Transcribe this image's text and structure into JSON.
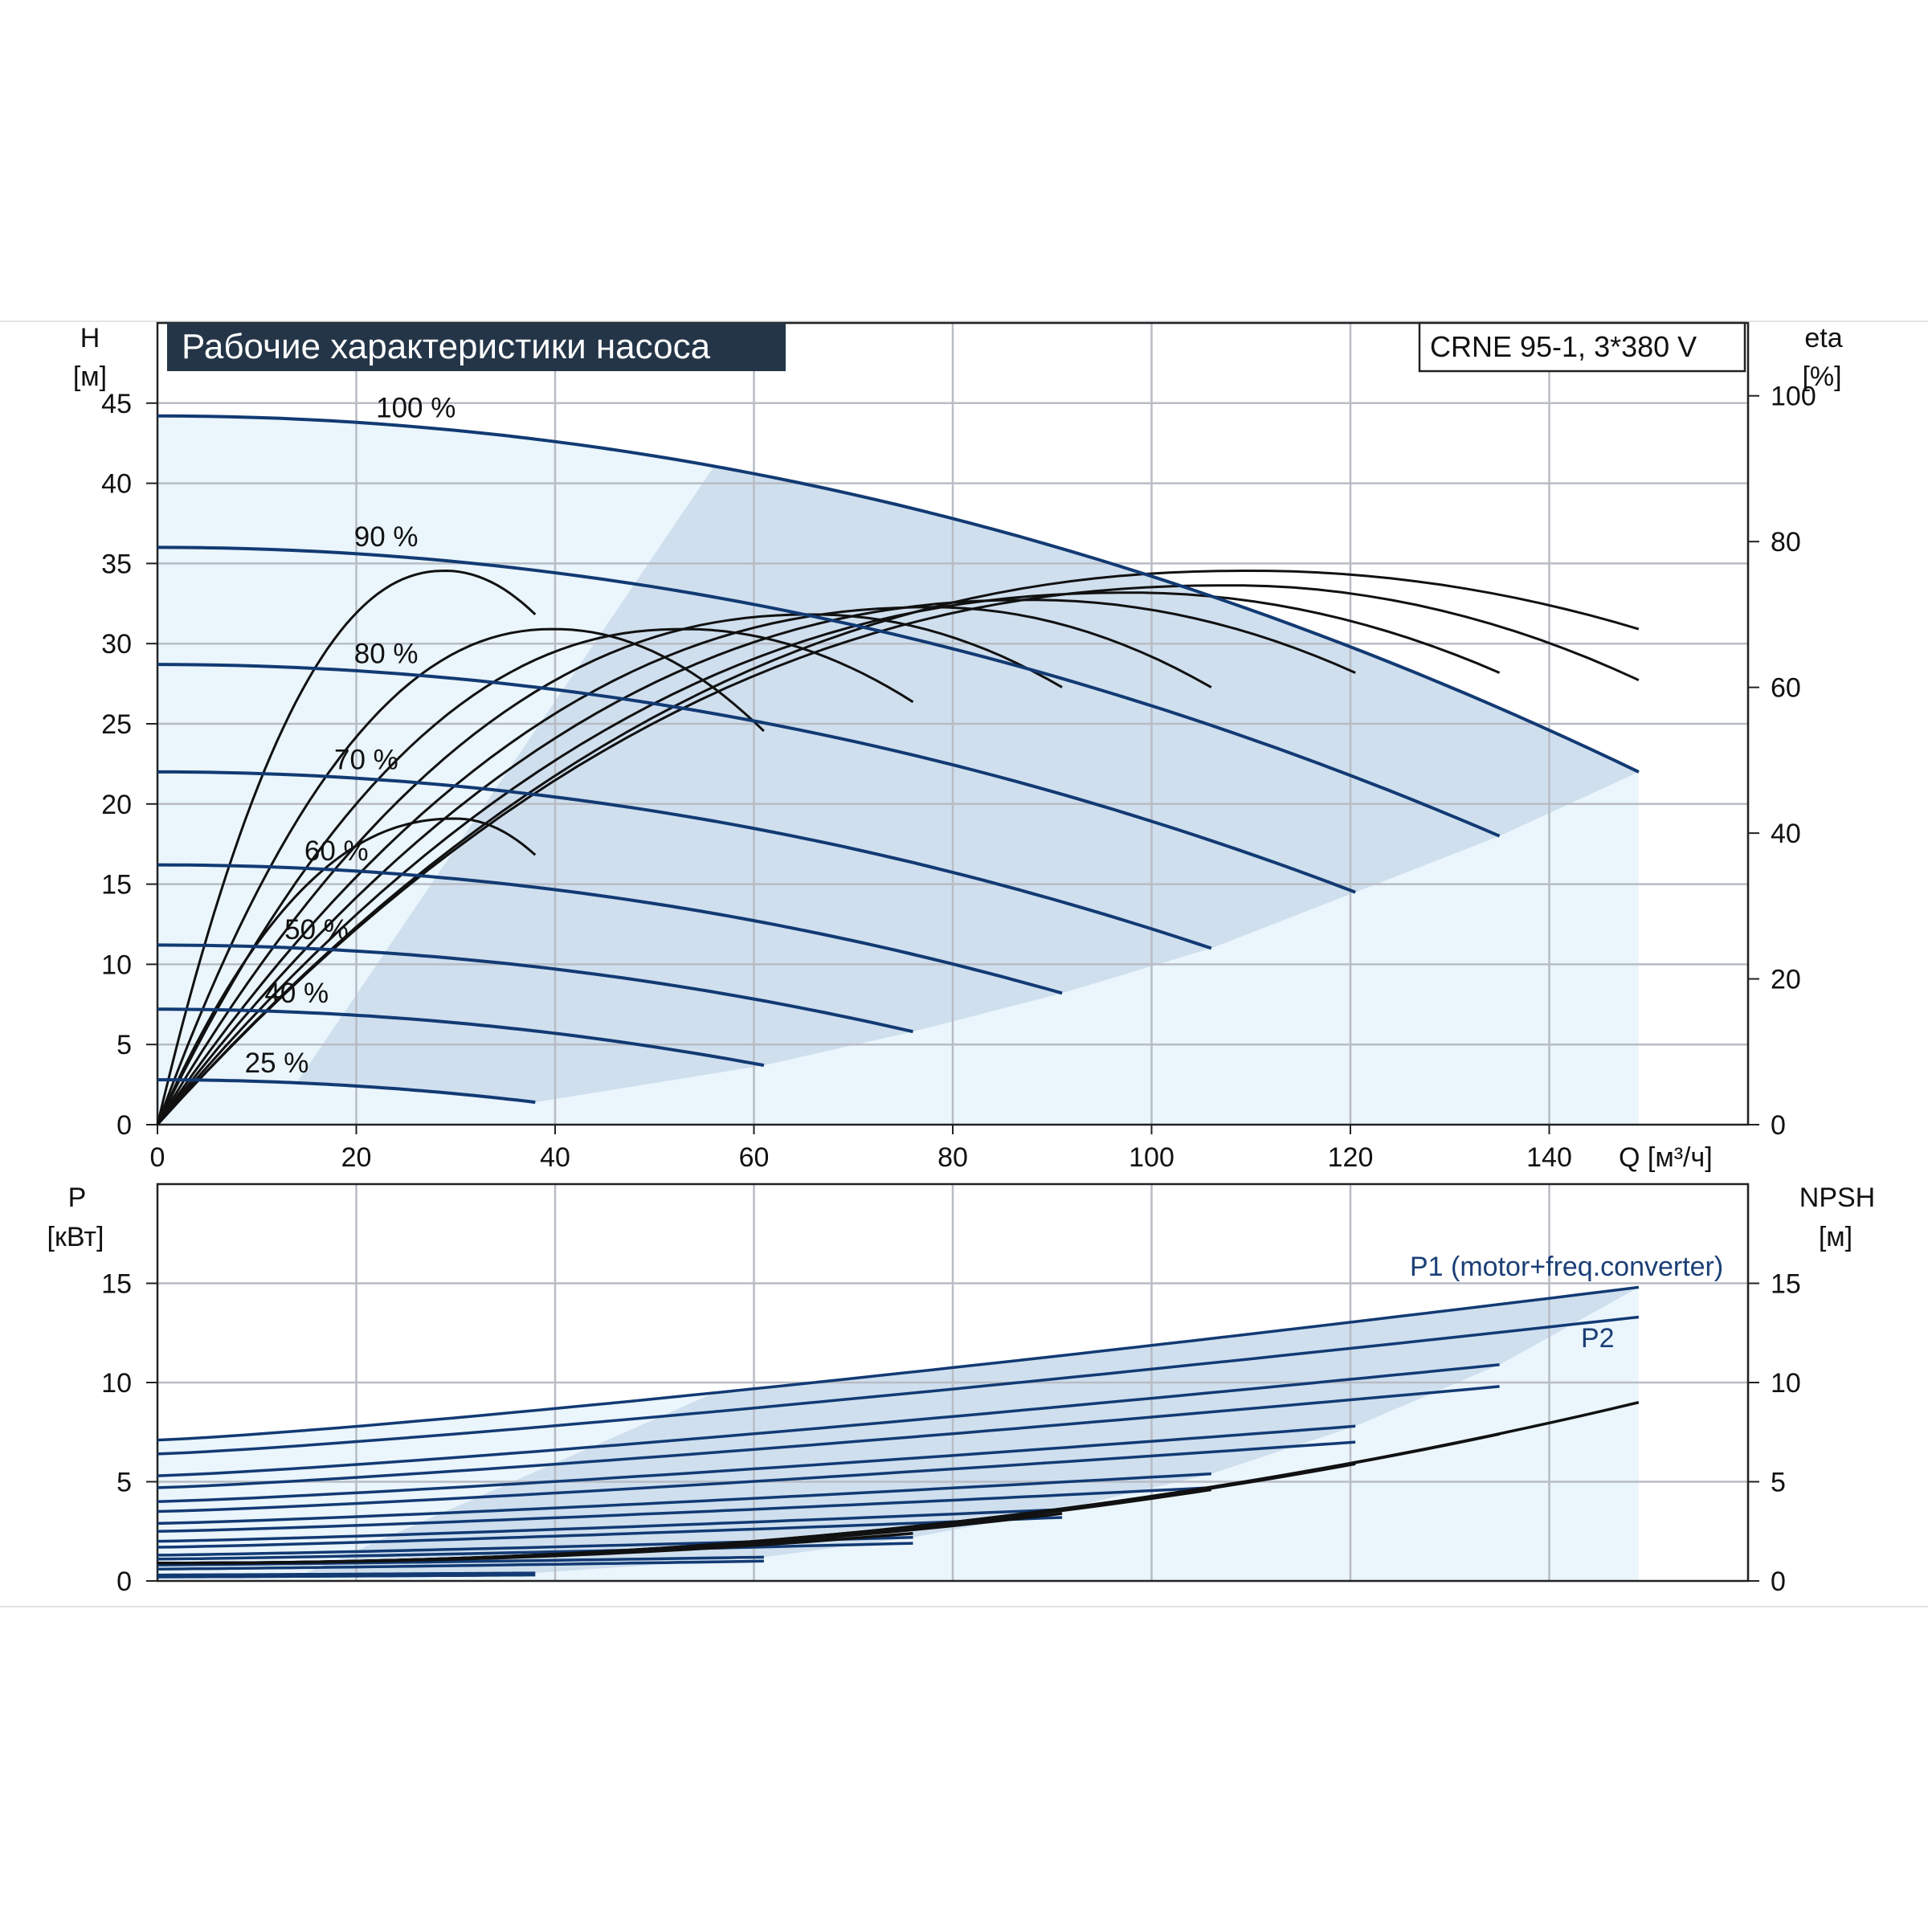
{
  "chart_data": [
    {
      "type": "line",
      "name": "head_efficiency",
      "title": "Рабочие характеристики насоса",
      "model": "CRNE 95-1, 3*380 V",
      "ylabel": "H",
      "yunit": "[м]",
      "y2label": "eta",
      "y2unit": "[%]",
      "xlabel": "Q [м³/ч]",
      "xlim": [
        0,
        160
      ],
      "ylim": [
        0,
        45
      ],
      "y2lim": [
        0,
        100
      ],
      "xticks": [
        "0",
        "20",
        "40",
        "60",
        "80",
        "100",
        "120",
        "140"
      ],
      "yticks": [
        "0",
        "5",
        "10",
        "15",
        "20",
        "25",
        "30",
        "35",
        "40",
        "45"
      ],
      "y2ticks": [
        "0",
        "20",
        "40",
        "60",
        "80",
        "100"
      ],
      "grid": true,
      "operating_range_color": "#cfdfee",
      "low_speed_region_color": "#eaf5fc",
      "head_curves": [
        {
          "label": "100 %",
          "qmax": 149,
          "h0": 44.2,
          "hmax_q": 22.0
        },
        {
          "label": "90 %",
          "qmax": 135,
          "h0": 36.0,
          "hmax_q": 18.0
        },
        {
          "label": "80 %",
          "qmax": 120.5,
          "h0": 28.7,
          "hmax_q": 14.5
        },
        {
          "label": "70 %",
          "qmax": 106,
          "h0": 22.0,
          "hmax_q": 11.0
        },
        {
          "label": "60 %",
          "qmax": 91,
          "h0": 16.2,
          "hmax_q": 8.2
        },
        {
          "label": "50 %",
          "qmax": 76,
          "h0": 11.2,
          "hmax_q": 5.8
        },
        {
          "label": "40 %",
          "qmax": 61,
          "h0": 7.2,
          "hmax_q": 3.7
        },
        {
          "label": "25 %",
          "qmax": 38,
          "h0": 2.8,
          "hmax_q": 1.4
        }
      ],
      "efficiency_curves": [
        {
          "qmax": 149,
          "eta_peak": 76,
          "q_peak": 110,
          "eta_end": 68
        },
        {
          "qmax": 149,
          "eta_peak": 74,
          "q_peak": 108,
          "eta_end": 61
        },
        {
          "qmax": 135,
          "eta_peak": 73,
          "q_peak": 98,
          "eta_end": 62
        },
        {
          "qmax": 120.5,
          "eta_peak": 72,
          "q_peak": 88,
          "eta_end": 62
        },
        {
          "qmax": 106,
          "eta_peak": 71,
          "q_peak": 78,
          "eta_end": 60
        },
        {
          "qmax": 91,
          "eta_peak": 70,
          "q_peak": 66,
          "eta_end": 60
        },
        {
          "qmax": 76,
          "eta_peak": 68,
          "q_peak": 53,
          "eta_end": 58
        },
        {
          "qmax": 61,
          "eta_peak": 68,
          "q_peak": 40,
          "eta_end": 54
        },
        {
          "qmax": 38,
          "eta_peak": 76,
          "q_peak": 29,
          "eta_end": 70
        },
        {
          "qmax": 38,
          "eta_peak": 42,
          "q_peak": 30,
          "eta_end": 37
        }
      ]
    },
    {
      "type": "line",
      "name": "power_npsh",
      "ylabel": "P",
      "yunit": "[кВт]",
      "y2label": "NPSH",
      "y2unit": "[м]",
      "xlim": [
        0,
        160
      ],
      "ylim": [
        0,
        20
      ],
      "y2lim": [
        0,
        20
      ],
      "yticks": [
        "0",
        "5",
        "10",
        "15"
      ],
      "y2ticks": [
        "0",
        "5",
        "10",
        "15"
      ],
      "grid": true,
      "p1_label": "P1 (motor+freq.converter)",
      "p2_label": "P2",
      "p1_curves": [
        {
          "qmax": 149,
          "p0": 7.1,
          "pend": 14.8
        },
        {
          "qmax": 135,
          "p0": 5.3,
          "pend": 10.9
        },
        {
          "qmax": 120.5,
          "p0": 4.0,
          "pend": 7.8
        },
        {
          "qmax": 106,
          "p0": 2.9,
          "pend": 5.4
        },
        {
          "qmax": 91,
          "p0": 2.0,
          "pend": 3.6
        },
        {
          "qmax": 76,
          "p0": 1.3,
          "pend": 2.2
        },
        {
          "qmax": 61,
          "p0": 0.8,
          "pend": 1.2
        },
        {
          "qmax": 38,
          "p0": 0.3,
          "pend": 0.4
        }
      ],
      "p2_curves": [
        {
          "qmax": 149,
          "p0": 6.4,
          "pend": 13.3
        },
        {
          "qmax": 135,
          "p0": 4.7,
          "pend": 9.8
        },
        {
          "qmax": 120.5,
          "p0": 3.5,
          "pend": 7.0
        },
        {
          "qmax": 106,
          "p0": 2.5,
          "pend": 4.7
        },
        {
          "qmax": 91,
          "p0": 1.7,
          "pend": 3.2
        },
        {
          "qmax": 76,
          "p0": 1.1,
          "pend": 1.9
        },
        {
          "qmax": 61,
          "p0": 0.6,
          "pend": 1.0
        },
        {
          "qmax": 38,
          "p0": 0.2,
          "pend": 0.3
        }
      ],
      "npsh_curves": [
        {
          "qmax": 149,
          "n_end": 9.0
        },
        {
          "qmax": 135,
          "n_end": 7.4
        },
        {
          "qmax": 120.5,
          "n_end": 5.9
        },
        {
          "qmax": 106,
          "n_end": 4.6
        },
        {
          "qmax": 91,
          "n_end": 3.4
        },
        {
          "qmax": 76,
          "n_end": 2.4
        }
      ]
    }
  ]
}
